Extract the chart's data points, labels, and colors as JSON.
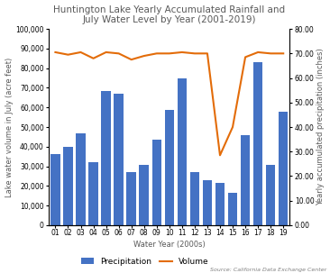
{
  "title": "Huntington Lake Yearly Accumulated Rainfall and\nJuly Water Level by Year (2001-2019)",
  "xlabel": "Water Year (2000s)",
  "ylabel_left": "Lake water volume in July (acre feet)",
  "ylabel_right": "Yearly accumulated precipitation (inches)",
  "years": [
    "01",
    "02",
    "03",
    "04",
    "05",
    "06",
    "07",
    "08",
    "09",
    "10",
    "11",
    "12",
    "13",
    "14",
    "15",
    "16",
    "17",
    "18",
    "19"
  ],
  "precipitation": [
    36000,
    40000,
    47000,
    32000,
    68500,
    67000,
    27000,
    30500,
    43500,
    58500,
    75000,
    27000,
    23000,
    21500,
    16500,
    46000,
    83000,
    30500,
    58000
  ],
  "volume": [
    70.5,
    69.5,
    70.5,
    68.0,
    70.5,
    70.0,
    67.5,
    69.0,
    70.0,
    70.0,
    70.5,
    70.0,
    70.0,
    28.5,
    40.0,
    68.5,
    70.5,
    70.0,
    70.0
  ],
  "bar_color": "#4472C4",
  "line_color": "#E36C09",
  "title_color": "#595959",
  "axis_label_color": "#595959",
  "ylim_left": [
    0,
    100000
  ],
  "ylim_right": [
    0.0,
    80.0
  ],
  "yticks_left": [
    0,
    10000,
    20000,
    30000,
    40000,
    50000,
    60000,
    70000,
    80000,
    90000,
    100000
  ],
  "yticks_right": [
    0.0,
    10.0,
    20.0,
    30.0,
    40.0,
    50.0,
    60.0,
    70.0,
    80.0
  ],
  "source_text": "Source: California Data Exchange Center",
  "legend_labels": [
    "Precipitation",
    "Volume"
  ],
  "title_fontsize": 7.5,
  "label_fontsize": 6.0,
  "tick_fontsize": 5.5,
  "legend_fontsize": 6.5,
  "source_fontsize": 4.5
}
